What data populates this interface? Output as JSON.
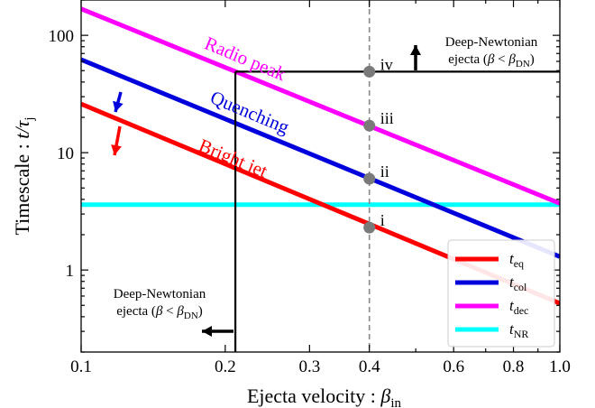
{
  "chart_data": {
    "type": "line",
    "xlabel": "Ejecta velocity : ",
    "xlabel_symbol": "β",
    "xlabel_sub": "in",
    "ylabel": "Timescale : ",
    "ylabel_symbol": "t/τ",
    "ylabel_sub": "j",
    "x_scale": "log",
    "y_scale": "log",
    "xlim": [
      0.1,
      1.0
    ],
    "ylim": [
      0.2,
      200
    ],
    "x_ticks": [
      {
        "value": 0.1,
        "label": "0.1"
      },
      {
        "value": 0.2,
        "label": "0.2"
      },
      {
        "value": 0.3,
        "label": "0.3"
      },
      {
        "value": 0.4,
        "label": "0.4"
      },
      {
        "value": 0.6,
        "label": "0.6"
      },
      {
        "value": 0.8,
        "label": "0.8"
      },
      {
        "value": 1.0,
        "label": "1.0"
      }
    ],
    "y_ticks": [
      {
        "value": 1,
        "label": "1"
      },
      {
        "value": 10,
        "label": "10"
      },
      {
        "value": 100,
        "label": "100"
      }
    ],
    "series": [
      {
        "name": "t",
        "sub": "eq",
        "color": "#ff0000",
        "x": [
          0.1,
          1.0
        ],
        "y": [
          26,
          0.52
        ]
      },
      {
        "name": "t",
        "sub": "col",
        "color": "#0000dd",
        "x": [
          0.1,
          1.0
        ],
        "y": [
          62,
          1.3
        ]
      },
      {
        "name": "t",
        "sub": "dec",
        "color": "#ff00ff",
        "x": [
          0.1,
          1.0
        ],
        "y": [
          168,
          3.7
        ]
      },
      {
        "name": "t",
        "sub": "NR",
        "color": "#00ffff",
        "x": [
          0.1,
          1.0
        ],
        "y": [
          3.6,
          3.6
        ]
      }
    ],
    "series_labels": [
      {
        "text": "Radio peak",
        "color": "#ff00ff",
        "x": 0.18,
        "y": 78
      },
      {
        "text": "Quenching",
        "color": "#0000dd",
        "x": 0.185,
        "y": 27
      },
      {
        "text": "Bright jet",
        "color": "#ff0000",
        "x": 0.175,
        "y": 10.5
      }
    ],
    "vline_dashed": {
      "x": 0.4,
      "color": "#888888"
    },
    "points": [
      {
        "label": "i",
        "x": 0.4,
        "y": 2.3
      },
      {
        "label": "ii",
        "x": 0.4,
        "y": 6.0
      },
      {
        "label": "iii",
        "x": 0.4,
        "y": 17
      },
      {
        "label": "iv",
        "x": 0.4,
        "y": 49
      }
    ],
    "boundary": {
      "x_dn": 0.21,
      "y_dn": 49,
      "color": "#000000"
    },
    "annotations": {
      "top": {
        "line1": "Deep-Newtonian",
        "line2_pre": "ejecta (",
        "beta": "β",
        "lt": " < ",
        "beta2": "β",
        "sub": "DN",
        "close": ")"
      },
      "bottom": {
        "line1": "Deep-Newtonian",
        "line2_pre": "ejecta (",
        "beta": "β",
        "lt": " < ",
        "beta2": "β",
        "sub": "DN",
        "close": ")"
      }
    },
    "legend": {
      "position": "lower right"
    }
  }
}
